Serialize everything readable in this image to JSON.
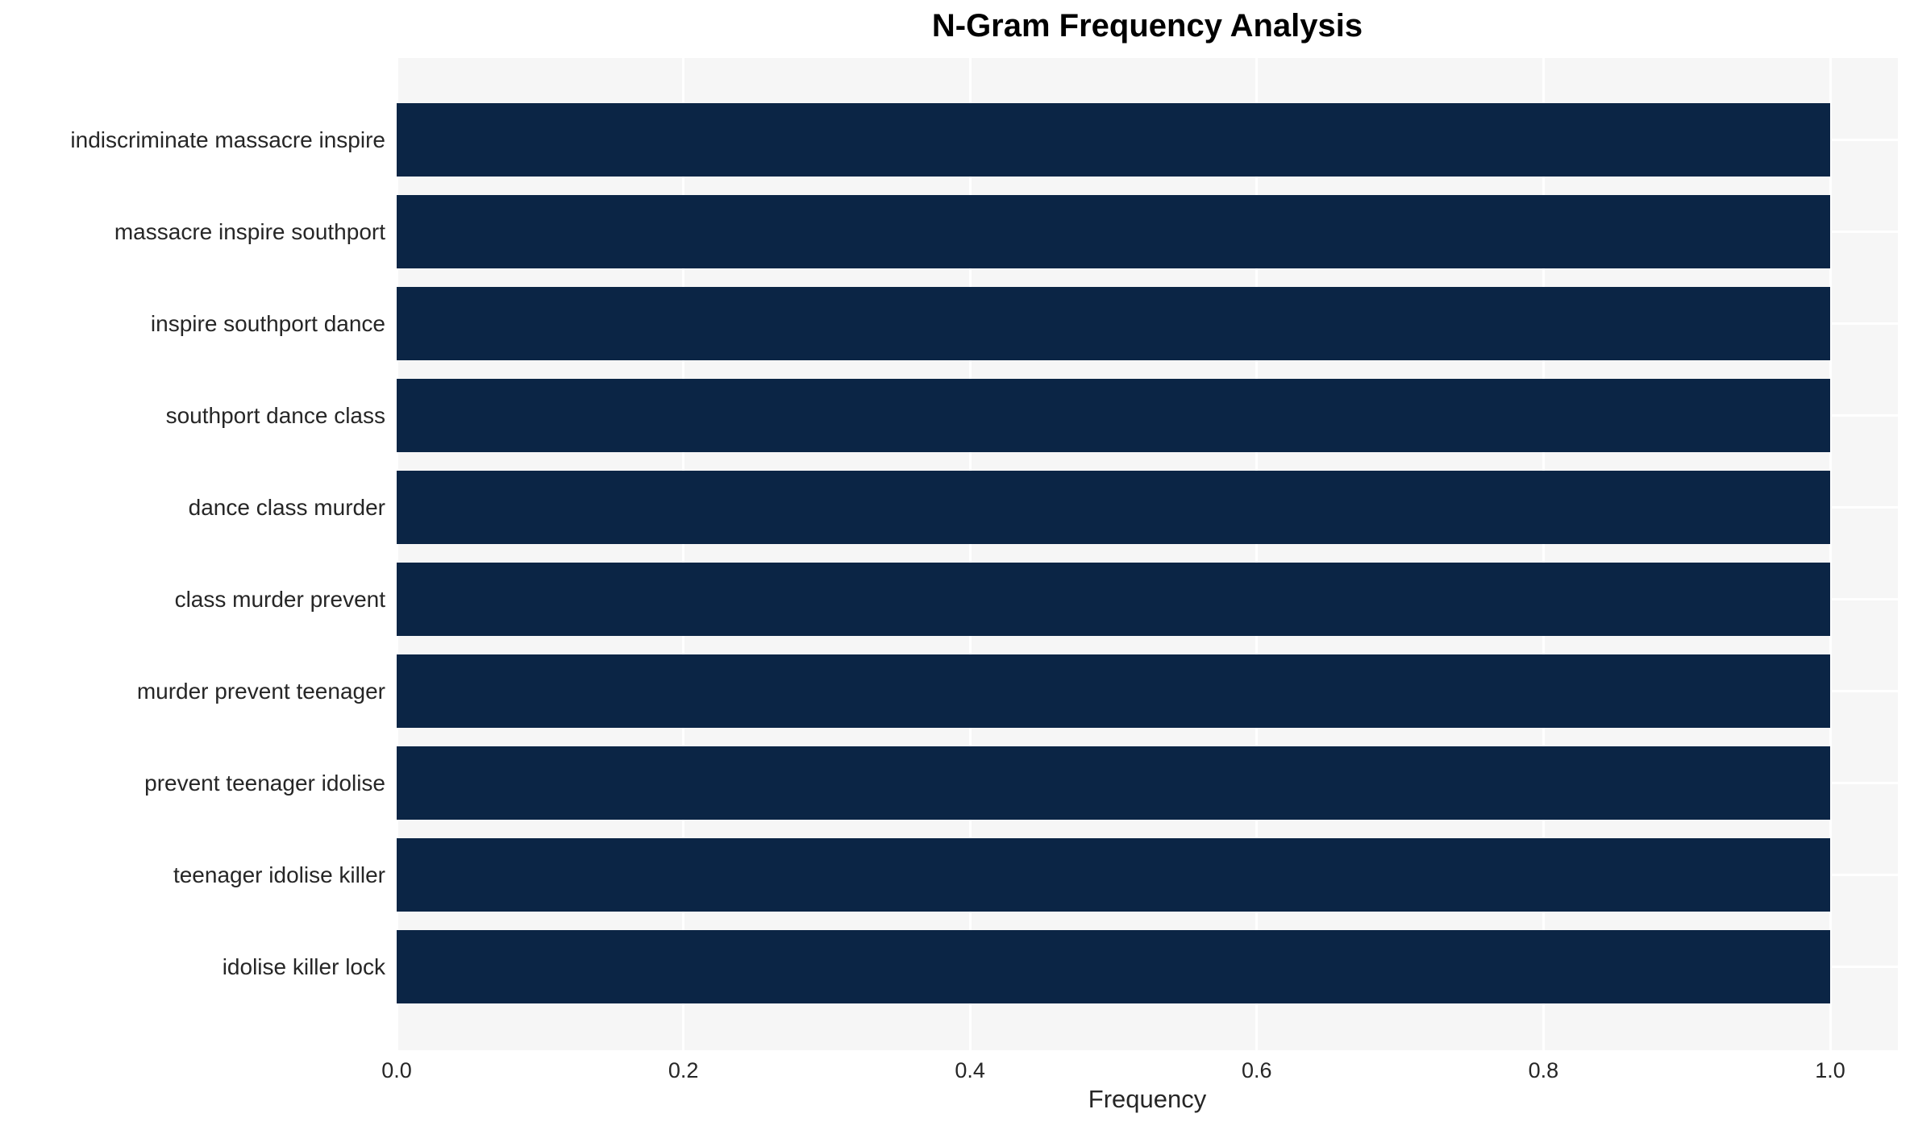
{
  "chart_data": {
    "type": "bar",
    "orientation": "horizontal",
    "title": "N-Gram Frequency Analysis",
    "xlabel": "Frequency",
    "ylabel": "",
    "categories": [
      "indiscriminate massacre inspire",
      "massacre inspire southport",
      "inspire southport dance",
      "southport dance class",
      "dance class murder",
      "class murder prevent",
      "murder prevent teenager",
      "prevent teenager idolise",
      "teenager idolise killer",
      "idolise killer lock"
    ],
    "values": [
      1.0,
      1.0,
      1.0,
      1.0,
      1.0,
      1.0,
      1.0,
      1.0,
      1.0,
      1.0
    ],
    "x_ticks": [
      0.0,
      0.2,
      0.4,
      0.6,
      0.8,
      1.0
    ],
    "x_tick_labels": [
      "0.0",
      "0.2",
      "0.4",
      "0.6",
      "0.8",
      "1.0"
    ],
    "xlim": [
      0,
      1.047
    ],
    "grid": true,
    "legend": null,
    "colors": {
      "bar": "#0b2545",
      "plot_background": "#f6f6f6",
      "grid_line": "#ffffff",
      "title_text": "#000000",
      "tick_text": "#262626",
      "figure_background": "#ffffff"
    }
  }
}
